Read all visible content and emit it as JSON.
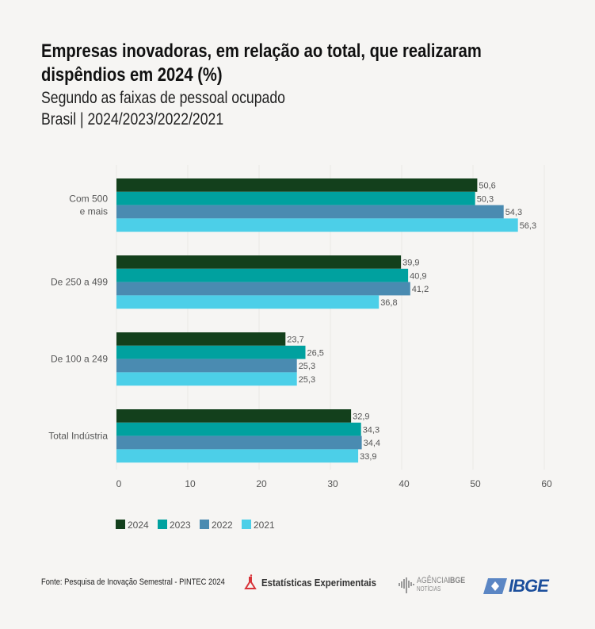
{
  "header": {
    "title": "Empresas inovadoras, em relação ao total, que realizaram dispêndios em 2024 (%)",
    "subtitle": "Segundo as faixas de pessoal ocupado",
    "subtitle2": "Brasil | 2024/2023/2022/2021"
  },
  "chart_data": {
    "type": "bar",
    "orientation": "horizontal",
    "categories": [
      [
        "Com 500",
        "e mais"
      ],
      [
        "De 250 a 499"
      ],
      [
        "De 100 a 249"
      ],
      [
        "Total Indústria"
      ]
    ],
    "series": [
      {
        "name": "2024",
        "color": "#13401c",
        "values": [
          50.6,
          39.9,
          23.7,
          32.9
        ],
        "labels": [
          "50,6",
          "39,9",
          "23,7",
          "32,9"
        ]
      },
      {
        "name": "2023",
        "color": "#00a19f",
        "values": [
          50.3,
          40.9,
          26.5,
          34.3
        ],
        "labels": [
          "50,3",
          "40,9",
          "26,5",
          "34,3"
        ]
      },
      {
        "name": "2022",
        "color": "#4a8bb1",
        "values": [
          54.3,
          41.2,
          25.3,
          34.4
        ],
        "labels": [
          "54,3",
          "41,2",
          "25,3",
          "34,4"
        ]
      },
      {
        "name": "2021",
        "color": "#4ccfe8",
        "values": [
          56.3,
          36.8,
          25.3,
          33.9
        ],
        "labels": [
          "56,3",
          "36,8",
          "25,3",
          "33,9"
        ]
      }
    ],
    "xlim": [
      0,
      60
    ],
    "xticks": [
      "0",
      "10",
      "20",
      "30",
      "40",
      "50",
      "60"
    ],
    "grid": true,
    "legend": "bottom-left"
  },
  "footer": {
    "source": "Fonte: Pesquisa de Inovação Semestral - PINTEC 2024",
    "logo1": "Estatísticas Experimentais",
    "logo2": "AGÊNCIA IBGE NOTÍCIAS",
    "logo3": "IBGE"
  }
}
